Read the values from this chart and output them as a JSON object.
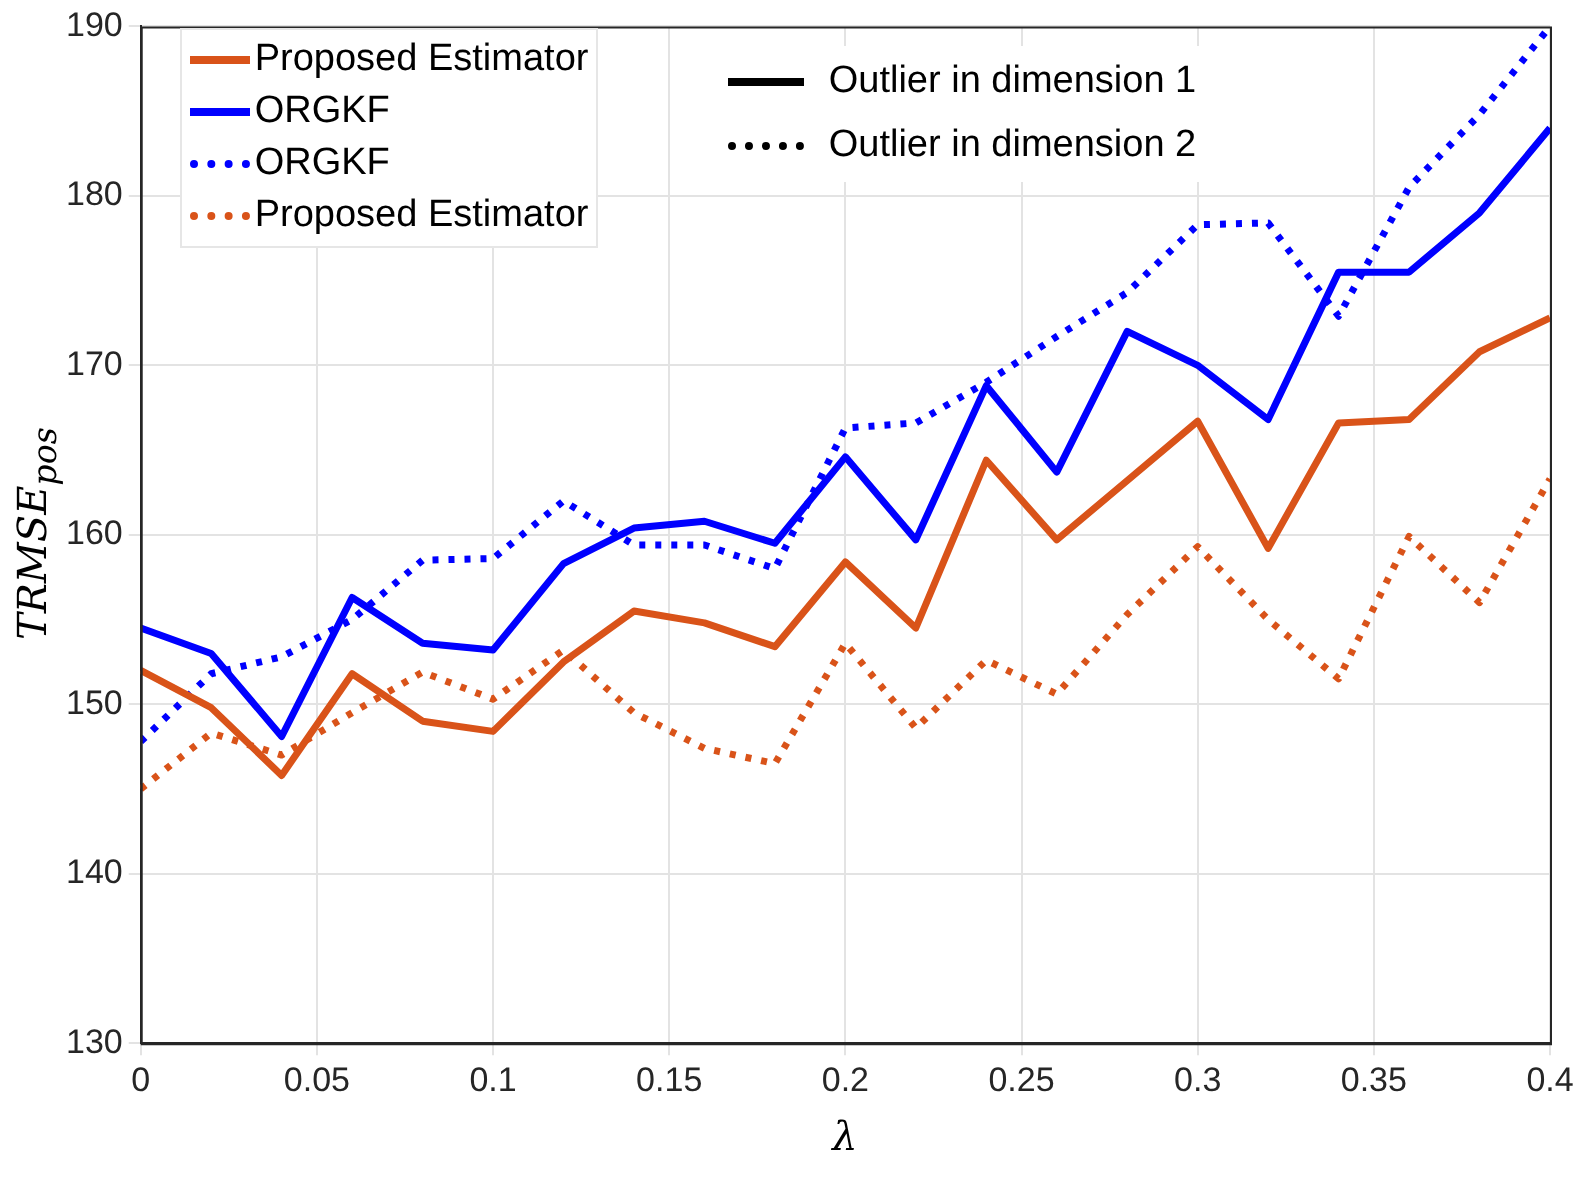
{
  "chart_data": {
    "type": "line",
    "xlabel": "λ",
    "ylabel": "TRMSE$_{pos}$",
    "x": [
      0,
      0.02,
      0.04,
      0.06,
      0.08,
      0.1,
      0.12,
      0.14,
      0.16,
      0.18,
      0.2,
      0.22,
      0.24,
      0.26,
      0.28,
      0.3,
      0.32,
      0.34,
      0.36,
      0.38,
      0.4
    ],
    "series": [
      {
        "name": "Proposed Estimator",
        "color": "#d95319",
        "line_style": "solid",
        "values": [
          152.0,
          149.8,
          145.8,
          151.8,
          149.0,
          148.4,
          152.5,
          155.5,
          154.8,
          153.4,
          158.4,
          154.5,
          164.4,
          159.7,
          163.2,
          166.7,
          159.2,
          166.6,
          166.8,
          170.8,
          172.8
        ]
      },
      {
        "name": "ORGKF",
        "color": "#0000ff",
        "line_style": "solid",
        "values": [
          154.5,
          153.0,
          148.1,
          156.3,
          153.6,
          153.2,
          158.3,
          160.4,
          160.8,
          159.5,
          164.6,
          159.7,
          168.8,
          163.7,
          172.0,
          170.0,
          166.8,
          175.5,
          175.5,
          179.0,
          184.0
        ]
      },
      {
        "name": "ORGKF",
        "color": "#0000ff",
        "line_style": "dotted",
        "values": [
          147.8,
          151.8,
          152.8,
          155.0,
          158.5,
          158.6,
          162.0,
          159.4,
          159.4,
          158.0,
          166.3,
          166.6,
          169.0,
          171.7,
          174.3,
          178.3,
          178.4,
          172.9,
          180.5,
          184.8,
          190.0
        ]
      },
      {
        "name": "Proposed Estimator",
        "color": "#d95319",
        "line_style": "dotted",
        "values": [
          145.0,
          148.3,
          147.0,
          149.5,
          151.9,
          150.3,
          153.2,
          149.5,
          147.4,
          146.5,
          153.6,
          148.6,
          152.6,
          150.6,
          155.3,
          159.3,
          155.0,
          151.5,
          159.9,
          156.0,
          163.3
        ]
      }
    ],
    "annotations": [
      "Outlier in dimension 1",
      "Outlier in dimension 2"
    ],
    "xlim": [
      0,
      0.4
    ],
    "xticks": [
      0,
      0.05,
      0.1,
      0.15,
      0.2,
      0.25,
      0.3,
      0.35,
      0.4
    ],
    "ylim": [
      130,
      190
    ],
    "yticks": [
      130,
      140,
      150,
      160,
      170,
      180,
      190
    ],
    "grid": true,
    "legend": "top left",
    "marker": "none"
  }
}
